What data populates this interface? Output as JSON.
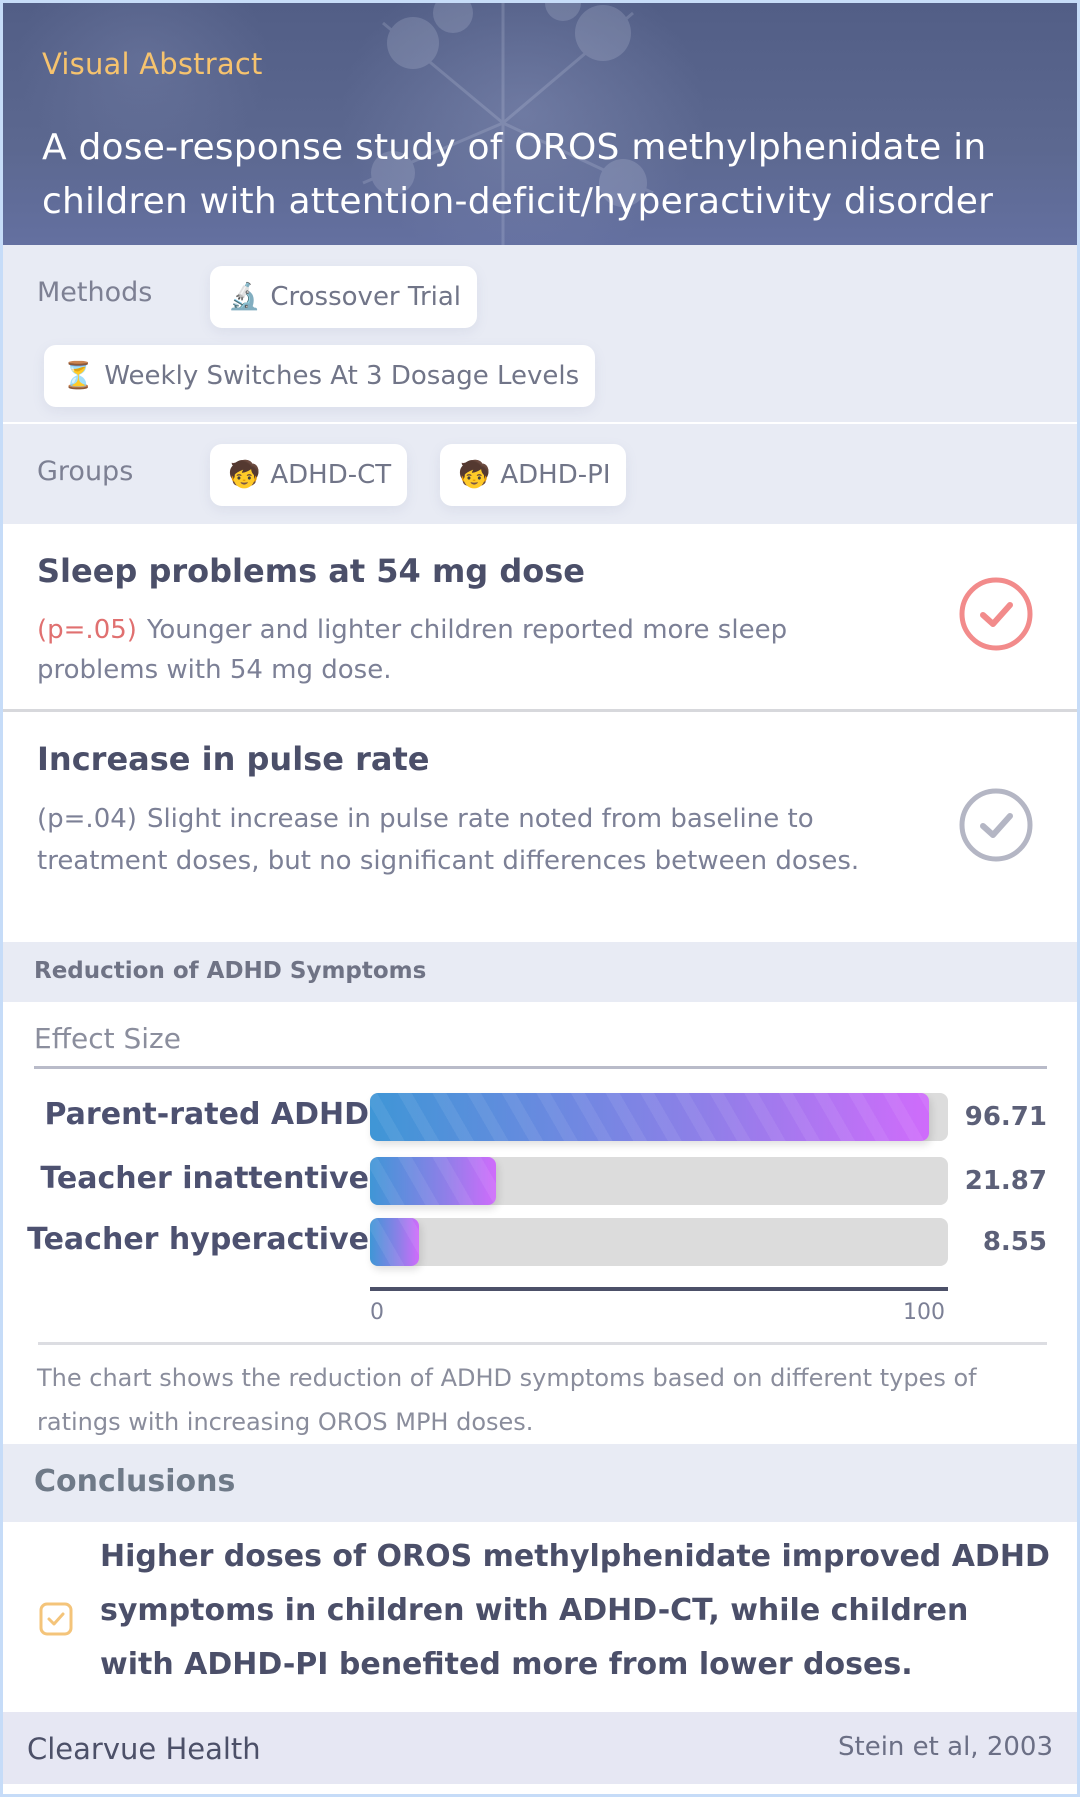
{
  "header": {
    "eyebrow": "Visual Abstract",
    "title": "A dose-response study of OROS methylphenidate in children with attention-deficit/hyperactivity disorder"
  },
  "methods": {
    "label": "Methods",
    "chips": [
      {
        "icon": "microscope-icon",
        "emoji": "🔬",
        "label": "Crossover Trial"
      },
      {
        "icon": "hourglass-icon",
        "emoji": "⏳",
        "label": "Weekly Switches At 3 Dosage Levels"
      }
    ]
  },
  "groups": {
    "label": "Groups",
    "chips": [
      {
        "icon": "child-icon",
        "emoji": "🧒",
        "label": "ADHD-CT"
      },
      {
        "icon": "child-icon",
        "emoji": "🧒",
        "label": "ADHD-PI"
      }
    ]
  },
  "findings": [
    {
      "title": "Sleep problems at 54 mg dose",
      "pvalue": "(p=.05)",
      "text": "Younger and lighter children reported more sleep problems with 54 mg dose.",
      "icon": "check-circle-icon",
      "icon_color": "#f28b8b",
      "pvalue_color": "#e07070"
    },
    {
      "title": "Increase in pulse rate",
      "pvalue": "(p=.04)",
      "text": "Slight increase in pulse rate noted from baseline to treatment doses, but no significant differences between doses.",
      "icon": "check-circle-icon",
      "icon_color": "#b4b6c4",
      "pvalue_color": "#7c8096"
    }
  ],
  "chart_section": {
    "heading": "Reduction of ADHD Symptoms",
    "subtitle": "Effect Size",
    "caption": "The chart shows the reduction of ADHD symptoms based on different types of ratings with increasing OROS MPH doses."
  },
  "chart_data": {
    "type": "bar",
    "orientation": "horizontal",
    "title": "Reduction of ADHD Symptoms",
    "subtitle": "Effect Size",
    "categories": [
      "Parent-rated ADHD",
      "Teacher inattentive",
      "Teacher hyperactive"
    ],
    "values": [
      96.71,
      21.87,
      8.55
    ],
    "value_labels": [
      "96.71",
      "21.87",
      "8.55"
    ],
    "xlim": [
      0,
      100
    ],
    "x_ticks": [
      "0",
      "100"
    ],
    "xlabel": "",
    "ylabel": "",
    "grid": false,
    "legend": null,
    "bar_gradient": [
      "#3f96d6",
      "#cf6cfb"
    ],
    "track_color": "#dcdcdc"
  },
  "conclusions": {
    "heading": "Conclusions",
    "icon": "checkbox-checked-icon",
    "icon_color": "#f4c47a",
    "text": "Higher doses of OROS methylphenidate improved ADHD symptoms in children with ADHD-CT, while children with ADHD-PI benefited more from lower doses."
  },
  "footer": {
    "brand": "Clearvue Health",
    "citation": "Stein et al, 2003"
  }
}
